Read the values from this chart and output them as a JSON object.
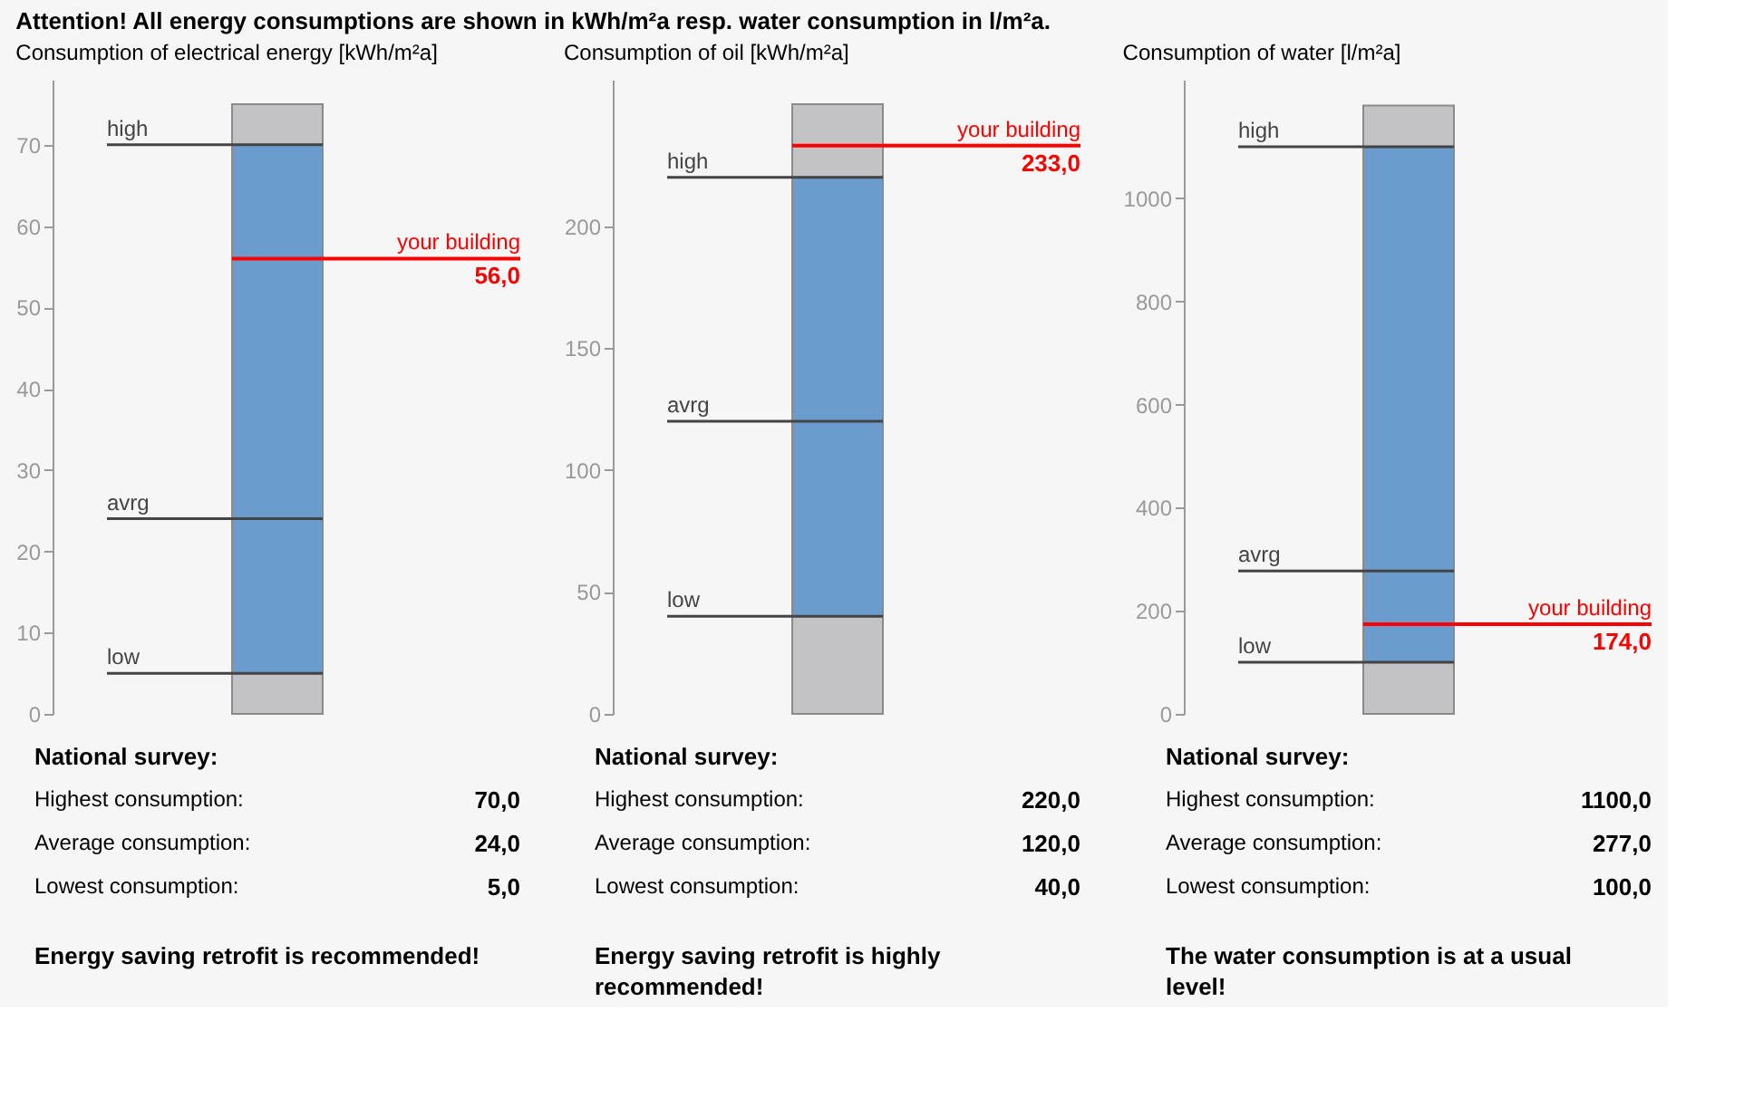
{
  "chart_data": [
    {
      "type": "bar",
      "title": "Consumption of electrical energy [kWh/m²a]",
      "subtitle": "Attention! All energy consumptions are shown in kWh/m²a resp. water consumption in l/m²a.",
      "categories": [
        null
      ],
      "stacked": true,
      "tick_labels": "y",
      "series": [
        {
          "color": "#c3c2c5",
          "values": [
            5
          ]
        },
        {
          "color": "#6a9ccd",
          "values": [
            65
          ]
        },
        {
          "color": "#c3c2c5",
          "values": [
            5
          ]
        }
      ],
      "ylim": [
        0,
        78
      ],
      "yticks": [
        0,
        10,
        20,
        30,
        40,
        50,
        60,
        70
      ],
      "ref_lines": [
        {
          "axis": "y",
          "value": 70,
          "label": "high"
        },
        {
          "axis": "y",
          "value": 24,
          "label": "avrg"
        },
        {
          "axis": "y",
          "value": 5,
          "label": "low"
        },
        {
          "axis": "y",
          "value": 56,
          "label": "your building",
          "color": "#ff0000"
        }
      ],
      "annotations": [
        {
          "text": "56,0",
          "y": 56
        },
        "National survey:",
        "Highest consumption:",
        "70,0",
        "Average consumption:",
        "24,0",
        "Lowest consumption:",
        "5,0",
        "Energy saving retrofit is recommended!"
      ]
    },
    {
      "type": "bar",
      "title": "Consumption of oil [kWh/m²a]",
      "categories": [
        null
      ],
      "stacked": true,
      "tick_labels": "y",
      "series": [
        {
          "color": "#c3c2c5",
          "values": [
            40
          ]
        },
        {
          "color": "#6a9ccd",
          "values": [
            180
          ]
        },
        {
          "color": "#c3c2c5",
          "values": [
            30
          ]
        }
      ],
      "ylim": [
        0,
        260
      ],
      "yticks": [
        0,
        50,
        100,
        150,
        200
      ],
      "ref_lines": [
        {
          "axis": "y",
          "value": 220,
          "label": "high"
        },
        {
          "axis": "y",
          "value": 120,
          "label": "avrg"
        },
        {
          "axis": "y",
          "value": 40,
          "label": "low"
        },
        {
          "axis": "y",
          "value": 233,
          "label": "your building",
          "color": "#ff0000"
        }
      ],
      "annotations": [
        {
          "text": "233,0",
          "y": 233
        },
        "National survey:",
        "Highest consumption:",
        "220,0",
        "Average consumption:",
        "120,0",
        "Lowest consumption:",
        "40,0",
        "Energy saving retrofit is highly recommended!"
      ]
    },
    {
      "type": "bar",
      "title": "Consumption of water [l/m²a]",
      "categories": [
        null
      ],
      "stacked": true,
      "tick_labels": "y",
      "series": [
        {
          "color": "#c3c2c5",
          "values": [
            100
          ]
        },
        {
          "color": "#6a9ccd",
          "values": [
            1000
          ]
        },
        {
          "color": "#c3c2c5",
          "values": [
            80
          ]
        }
      ],
      "ylim": [
        0,
        1230
      ],
      "yticks": [
        0,
        200,
        400,
        600,
        800,
        1000
      ],
      "ref_lines": [
        {
          "axis": "y",
          "value": 1100,
          "label": "high"
        },
        {
          "axis": "y",
          "value": 277,
          "label": "avrg"
        },
        {
          "axis": "y",
          "value": 100,
          "label": "low"
        },
        {
          "axis": "y",
          "value": 174,
          "label": "your building",
          "color": "#ff0000"
        }
      ],
      "annotations": [
        {
          "text": "174,0",
          "y": 174
        },
        "National survey:",
        "Highest consumption:",
        "1100,0",
        "Average consumption:",
        "277,0",
        "Lowest consumption:",
        "100,0",
        "The water consumption is at a usual level!"
      ]
    }
  ]
}
